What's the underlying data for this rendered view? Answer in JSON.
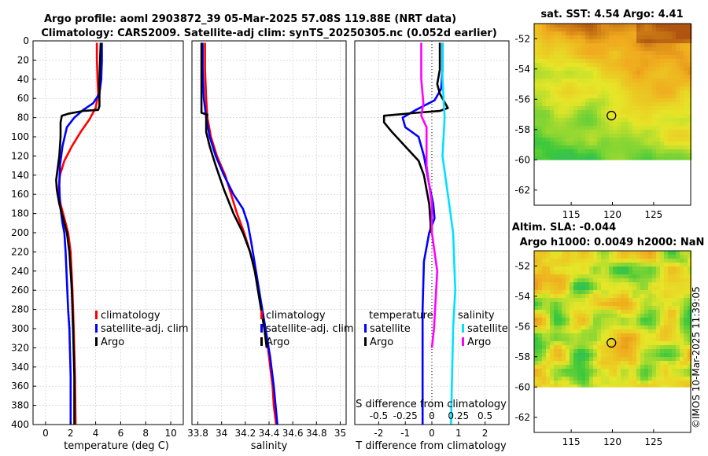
{
  "title": {
    "line1": "Argo profile: aoml 2903872_39 05-Mar-2025 57.08S 119.88E (NRT data)",
    "line2": "Climatology: CARS2009. Satellite-adj clim: synTS_20250305.nc (0.052d earlier)"
  },
  "watermark": "©IMOS 10-Mar-2025 11:39:05",
  "colors": {
    "climatology": "#ff0000",
    "satellite": "#0000ff",
    "argo": "#000000",
    "salinity_satellite": "#00e0ff",
    "salinity_argo": "#ff00ff"
  },
  "chart_data": [
    {
      "id": "temperature",
      "type": "line",
      "xlabel": "temperature (deg C)",
      "ylabel": "",
      "xlim": [
        -1,
        11
      ],
      "ylim": [
        0,
        400
      ],
      "y_reversed": true,
      "xticks": [
        0,
        2,
        4,
        6,
        8,
        10
      ],
      "xticklabels": [
        "0",
        "2",
        "4",
        "6",
        "8",
        "10"
      ],
      "yticks": [
        0,
        20,
        40,
        60,
        80,
        100,
        120,
        140,
        160,
        180,
        200,
        220,
        240,
        260,
        280,
        300,
        320,
        340,
        360,
        380,
        400
      ],
      "yticklabels": [
        "0",
        "20",
        "40",
        "60",
        "80",
        "100",
        "120",
        "140",
        "160",
        "180",
        "200",
        "220",
        "240",
        "260",
        "280",
        "300",
        "320",
        "340",
        "360",
        "380",
        "400"
      ],
      "legend": [
        "climatology",
        "satellite-adj. clim",
        "Argo"
      ],
      "legend_placement": "center-right",
      "series": [
        {
          "name": "climatology",
          "color": "#ff0000",
          "points": [
            [
              4.1,
              2
            ],
            [
              4.1,
              20
            ],
            [
              4.15,
              40
            ],
            [
              4.2,
              55
            ],
            [
              4.0,
              70
            ],
            [
              3.5,
              82
            ],
            [
              2.8,
              95
            ],
            [
              2.1,
              110
            ],
            [
              1.5,
              125
            ],
            [
              1.15,
              140
            ],
            [
              1.05,
              155
            ],
            [
              1.2,
              170
            ],
            [
              1.5,
              185
            ],
            [
              1.8,
              200
            ],
            [
              2.0,
              220
            ],
            [
              2.15,
              260
            ],
            [
              2.25,
              300
            ],
            [
              2.35,
              350
            ],
            [
              2.4,
              400
            ]
          ]
        },
        {
          "name": "satellite-adj. clim",
          "color": "#0000ff",
          "points": [
            [
              4.5,
              2
            ],
            [
              4.5,
              20
            ],
            [
              4.45,
              40
            ],
            [
              4.3,
              55
            ],
            [
              3.8,
              65
            ],
            [
              3.0,
              72
            ],
            [
              2.3,
              80
            ],
            [
              1.7,
              90
            ],
            [
              1.35,
              110
            ],
            [
              1.15,
              130
            ],
            [
              1.1,
              150
            ],
            [
              1.15,
              170
            ],
            [
              1.35,
              190
            ],
            [
              1.5,
              200
            ],
            [
              1.6,
              220
            ],
            [
              1.7,
              250
            ],
            [
              1.8,
              280
            ],
            [
              1.9,
              300
            ],
            [
              2.0,
              350
            ],
            [
              2.0,
              400
            ]
          ]
        },
        {
          "name": "Argo",
          "color": "#000000",
          "points": [
            [
              4.4,
              2
            ],
            [
              4.35,
              20
            ],
            [
              4.3,
              40
            ],
            [
              4.3,
              55
            ],
            [
              4.3,
              68
            ],
            [
              4.2,
              72
            ],
            [
              3.0,
              73
            ],
            [
              1.8,
              76
            ],
            [
              1.3,
              78
            ],
            [
              1.2,
              85
            ],
            [
              1.2,
              100
            ],
            [
              1.1,
              120
            ],
            [
              0.95,
              135
            ],
            [
              0.85,
              145
            ],
            [
              0.9,
              155
            ],
            [
              1.1,
              170
            ],
            [
              1.4,
              185
            ],
            [
              1.7,
              200
            ],
            [
              1.9,
              220
            ],
            [
              2.1,
              260
            ],
            [
              2.2,
              300
            ],
            [
              2.3,
              350
            ],
            [
              2.3,
              400
            ]
          ]
        }
      ]
    },
    {
      "id": "salinity",
      "type": "line",
      "xlabel": "salinity",
      "ylabel": "",
      "xlim": [
        33.75,
        35.05
      ],
      "ylim": [
        0,
        400
      ],
      "y_reversed": true,
      "xticks": [
        33.8,
        34.0,
        34.2,
        34.4,
        34.6,
        34.8,
        35.0
      ],
      "xticklabels": [
        "33.8",
        "34",
        "34.2",
        "34.4",
        "34.6",
        "34.8",
        "35"
      ],
      "yticks": [
        0,
        20,
        40,
        60,
        80,
        100,
        120,
        140,
        160,
        180,
        200,
        220,
        240,
        260,
        280,
        300,
        320,
        340,
        360,
        380,
        400
      ],
      "legend": [
        "climatology",
        "satellite-adj. clim",
        "Argo"
      ],
      "legend_placement": "center-right",
      "series": [
        {
          "name": "climatology",
          "color": "#ff0000",
          "points": [
            [
              33.86,
              2
            ],
            [
              33.86,
              30
            ],
            [
              33.87,
              60
            ],
            [
              33.88,
              80
            ],
            [
              33.91,
              100
            ],
            [
              33.96,
              120
            ],
            [
              34.03,
              140
            ],
            [
              34.08,
              160
            ],
            [
              34.13,
              180
            ],
            [
              34.19,
              200
            ],
            [
              34.24,
              220
            ],
            [
              34.28,
              240
            ],
            [
              34.31,
              260
            ],
            [
              34.34,
              280
            ],
            [
              34.37,
              300
            ],
            [
              34.39,
              320
            ],
            [
              34.41,
              340
            ],
            [
              34.43,
              360
            ],
            [
              34.44,
              380
            ],
            [
              34.46,
              400
            ]
          ]
        },
        {
          "name": "satellite-adj. clim",
          "color": "#0000ff",
          "points": [
            [
              33.84,
              2
            ],
            [
              33.84,
              30
            ],
            [
              33.85,
              60
            ],
            [
              33.87,
              80
            ],
            [
              33.9,
              100
            ],
            [
              33.95,
              120
            ],
            [
              34.02,
              140
            ],
            [
              34.1,
              160
            ],
            [
              34.18,
              175
            ],
            [
              34.22,
              190
            ],
            [
              34.25,
              210
            ],
            [
              34.29,
              240
            ],
            [
              34.33,
              270
            ],
            [
              34.37,
              300
            ],
            [
              34.41,
              330
            ],
            [
              34.44,
              360
            ],
            [
              34.47,
              400
            ]
          ]
        },
        {
          "name": "Argo",
          "color": "#000000",
          "points": [
            [
              33.83,
              2
            ],
            [
              33.83,
              30
            ],
            [
              33.83,
              60
            ],
            [
              33.83,
              75
            ],
            [
              33.88,
              77
            ],
            [
              33.87,
              80
            ],
            [
              33.87,
              95
            ],
            [
              33.9,
              110
            ],
            [
              33.95,
              130
            ],
            [
              34.02,
              155
            ],
            [
              34.1,
              180
            ],
            [
              34.18,
              200
            ],
            [
              34.24,
              220
            ],
            [
              34.28,
              240
            ],
            [
              34.32,
              270
            ],
            [
              34.36,
              300
            ],
            [
              34.38,
              320
            ]
          ]
        }
      ]
    },
    {
      "id": "difference",
      "type": "line",
      "xlabel": "T difference from climatology",
      "top_label": "S difference from climatology",
      "xlim": [
        -2.9,
        2.9
      ],
      "ylim": [
        0,
        400
      ],
      "y_reversed": true,
      "xticks": [
        -2,
        -1,
        0,
        1,
        2
      ],
      "xticklabels": [
        "-2",
        "-1",
        "0",
        "1",
        "2"
      ],
      "sticks_values": [
        -0.5,
        -0.25,
        0,
        0.25,
        0.5
      ],
      "sticklabels": [
        "-0.5",
        "-0.25",
        "0",
        "0.25",
        "0.5"
      ],
      "yticks": [
        0,
        20,
        40,
        60,
        80,
        100,
        120,
        140,
        160,
        180,
        200,
        220,
        240,
        260,
        280,
        300,
        320,
        340,
        360,
        380,
        400
      ],
      "legend_left_header": "temperature",
      "legend_right_header": "salinity",
      "legend_left": [
        "satellite",
        "Argo"
      ],
      "legend_right": [
        "satellite",
        "Argo"
      ],
      "zero_line": true,
      "series": [
        {
          "name": "T satellite",
          "color": "#0000ff",
          "points": [
            [
              0.4,
              2
            ],
            [
              0.4,
              30
            ],
            [
              0.35,
              50
            ],
            [
              0.1,
              62
            ],
            [
              -0.6,
              72
            ],
            [
              -1.1,
              80
            ],
            [
              -1.0,
              90
            ],
            [
              -0.5,
              100
            ],
            [
              -0.3,
              120
            ],
            [
              -0.1,
              150
            ],
            [
              0.05,
              170
            ],
            [
              0.1,
              185
            ],
            [
              -0.1,
              200
            ],
            [
              -0.3,
              230
            ],
            [
              -0.35,
              280
            ],
            [
              -0.35,
              350
            ],
            [
              -0.35,
              400
            ]
          ]
        },
        {
          "name": "T Argo",
          "color": "#000000",
          "points": [
            [
              0.3,
              2
            ],
            [
              0.3,
              30
            ],
            [
              0.2,
              45
            ],
            [
              0.3,
              55
            ],
            [
              0.5,
              65
            ],
            [
              0.6,
              70
            ],
            [
              0.3,
              73
            ],
            [
              -0.6,
              75
            ],
            [
              -1.8,
              78
            ],
            [
              -1.8,
              85
            ],
            [
              -1.5,
              95
            ],
            [
              -1.0,
              110
            ],
            [
              -0.5,
              125
            ],
            [
              -0.3,
              140
            ],
            [
              -0.2,
              155
            ],
            [
              -0.1,
              170
            ],
            [
              -0.05,
              190
            ],
            [
              -0.05,
              200
            ]
          ]
        },
        {
          "name": "S satellite",
          "color": "#00e0ff",
          "points": [
            [
              0.1,
              2
            ],
            [
              0.1,
              40
            ],
            [
              0.12,
              80
            ],
            [
              0.1,
              120
            ],
            [
              0.15,
              160
            ],
            [
              0.2,
              200
            ],
            [
              0.22,
              260
            ],
            [
              0.2,
              300
            ],
            [
              0.18,
              400
            ]
          ]
        },
        {
          "name": "S Argo",
          "color": "#ff00ff",
          "points": [
            [
              -0.1,
              2
            ],
            [
              -0.1,
              40
            ],
            [
              -0.08,
              65
            ],
            [
              -0.1,
              78
            ],
            [
              -0.05,
              90
            ],
            [
              -0.05,
              130
            ],
            [
              0.0,
              170
            ],
            [
              0.0,
              200
            ],
            [
              0.05,
              240
            ],
            [
              0.02,
              300
            ],
            [
              0.0,
              320
            ]
          ]
        }
      ]
    }
  ],
  "maps": [
    {
      "id": "sst",
      "title": "sat. SST: 4.54 Argo: 4.41",
      "xticklabels": [
        "115",
        "120",
        "125"
      ],
      "xticks": [
        115,
        120,
        125
      ],
      "xlim": [
        110.5,
        129.5
      ],
      "yticklabels": [
        "-52",
        "-54",
        "-56",
        "-58",
        "-60",
        "-62"
      ],
      "yticks": [
        -52,
        -54,
        -56,
        -58,
        -60,
        -62
      ],
      "ylim": [
        -63,
        -51
      ],
      "data_ylim": [
        -60,
        -51
      ],
      "marker": [
        119.88,
        -57.08
      ]
    },
    {
      "id": "sla",
      "title_line1": "Altim. SLA: -0.044",
      "title_line2": "Argo h1000: 0.0049 h2000: NaN",
      "xticklabels": [
        "115",
        "120",
        "125"
      ],
      "xticks": [
        115,
        120,
        125
      ],
      "xlim": [
        110.5,
        129.5
      ],
      "yticklabels": [
        "-52",
        "-54",
        "-56",
        "-58",
        "-60",
        "-62"
      ],
      "yticks": [
        -52,
        -54,
        -56,
        -58,
        -60,
        -62
      ],
      "ylim": [
        -63,
        -51
      ],
      "data_ylim": [
        -60,
        -51
      ],
      "marker": [
        119.88,
        -57.08
      ]
    }
  ]
}
